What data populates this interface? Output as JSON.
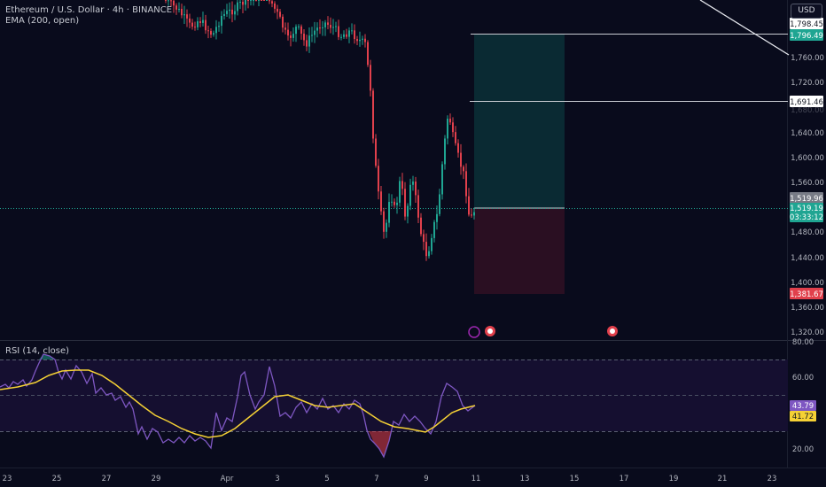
{
  "header": {
    "symbol_line": "Ethereum / U.S. Dollar · 4h · BINANCE",
    "indicator_line": "EMA (200, open)",
    "currency_button": "USD"
  },
  "rsi": {
    "title": "RSI (14, close)",
    "axis_ticks": [
      "80.00",
      "60.00",
      "20.00"
    ],
    "value_label": "43.79",
    "ma_label": "41.72"
  },
  "price_axis": {
    "ticks": [
      "1,760.00",
      "1,720.00",
      "1,680.00",
      "1,640.00",
      "1,600.00",
      "1,560.00",
      "1,480.00",
      "1,440.00",
      "1,400.00",
      "1,360.00",
      "1,320.00"
    ]
  },
  "price_labels": {
    "top_line": "1,798.45",
    "target": "1,796.49",
    "mid_line": "1,691.46",
    "entry": "1,519.96",
    "current": "1,519.19",
    "countdown": "03:33:12",
    "stop": "1,381.67"
  },
  "time_axis": {
    "ticks": [
      "23",
      "25",
      "27",
      "29",
      "Apr",
      "3",
      "5",
      "7",
      "9",
      "11",
      "13",
      "15",
      "17",
      "19",
      "21",
      "23"
    ]
  },
  "colors": {
    "background": "#090b1c",
    "up": "#1fa592",
    "down": "#e1404c",
    "rsi_line": "#7e57c2",
    "rsi_ma": "#f5d135",
    "profit_zone": "#0a2a33",
    "loss_zone": "#2a0f22"
  }
}
